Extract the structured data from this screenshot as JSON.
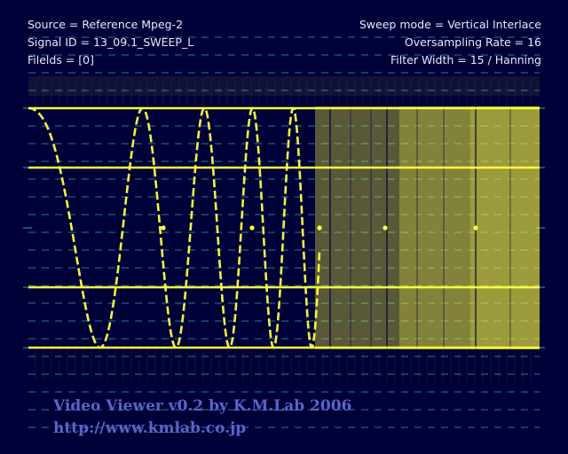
{
  "info": {
    "source": "Source = Reference Mpeg-2",
    "signal_id": "Signal ID = 13_09.1_SWEEP_L",
    "fields": "Filelds = [0]",
    "sweep_mode": "Sweep mode = Vertical Interlace",
    "oversampling": "Oversampling Rate = 16",
    "filter": "Filter Width = 15 / Hanning"
  },
  "credits": {
    "title": "Video Viewer v0.2 by K.M.Lab 2006",
    "url": "http://www.kmlab.co.jp"
  },
  "colors": {
    "background": "#000038",
    "trace": "#ffff40",
    "grid": "#2aa8a8",
    "credit": "#5a64c8"
  }
}
